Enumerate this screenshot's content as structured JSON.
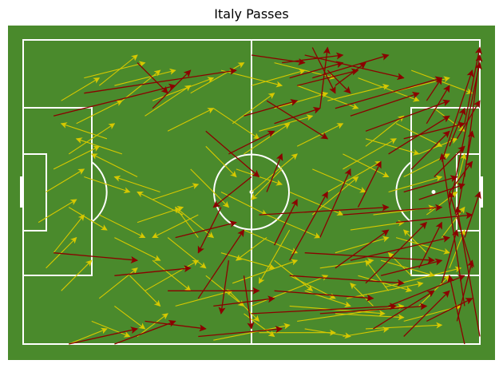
{
  "title": "Italy Passes",
  "colors": {
    "grass": "#4a8a2c",
    "lines": "#ffffff",
    "completed_pass": "#d6c800",
    "failed_pass": "#8b0000"
  },
  "chart_data": {
    "type": "scatter",
    "subtype": "pass-map",
    "pitch": {
      "length": 120,
      "width": 80,
      "grid": false
    },
    "legend": "none",
    "series": [
      {
        "status": "completed",
        "color": "#d6c800",
        "passes": [
          [
            12,
            80,
            22,
            76
          ],
          [
            30,
            78,
            38,
            72
          ],
          [
            50,
            79,
            70,
            75
          ],
          [
            62,
            77,
            82,
            77
          ],
          [
            70,
            70,
            95,
            72
          ],
          [
            72,
            74,
            100,
            70
          ],
          [
            82,
            72,
            100,
            73
          ],
          [
            90,
            76,
            110,
            75
          ],
          [
            100,
            74,
            115,
            70
          ],
          [
            104,
            70,
            112,
            62
          ],
          [
            95,
            65,
            115,
            60
          ],
          [
            85,
            68,
            105,
            64
          ],
          [
            60,
            70,
            80,
            62
          ],
          [
            55,
            64,
            72,
            58
          ],
          [
            48,
            62,
            58,
            70
          ],
          [
            40,
            70,
            55,
            66
          ],
          [
            32,
            66,
            46,
            58
          ],
          [
            20,
            68,
            30,
            60
          ],
          [
            10,
            66,
            18,
            58
          ],
          [
            6,
            60,
            14,
            52
          ],
          [
            8,
            56,
            16,
            46
          ],
          [
            4,
            48,
            14,
            42
          ],
          [
            6,
            40,
            16,
            34
          ],
          [
            8,
            34,
            20,
            28
          ],
          [
            12,
            30,
            24,
            22
          ],
          [
            14,
            22,
            26,
            16
          ],
          [
            10,
            16,
            20,
            10
          ],
          [
            16,
            10,
            32,
            6
          ],
          [
            24,
            12,
            40,
            8
          ],
          [
            34,
            16,
            50,
            10
          ],
          [
            44,
            14,
            58,
            6
          ],
          [
            52,
            8,
            68,
            12
          ],
          [
            60,
            12,
            74,
            8
          ],
          [
            66,
            6,
            82,
            10
          ],
          [
            72,
            12,
            88,
            18
          ],
          [
            80,
            16,
            96,
            12
          ],
          [
            88,
            10,
            104,
            16
          ],
          [
            96,
            14,
            112,
            10
          ],
          [
            102,
            8,
            118,
            14
          ],
          [
            108,
            18,
            116,
            24
          ],
          [
            98,
            22,
            110,
            28
          ],
          [
            90,
            26,
            104,
            30
          ],
          [
            84,
            30,
            96,
            36
          ],
          [
            76,
            34,
            90,
            40
          ],
          [
            70,
            40,
            84,
            46
          ],
          [
            64,
            46,
            78,
            52
          ],
          [
            58,
            50,
            72,
            56
          ],
          [
            52,
            56,
            66,
            60
          ],
          [
            46,
            52,
            40,
            44
          ],
          [
            42,
            46,
            30,
            40
          ],
          [
            36,
            40,
            24,
            36
          ],
          [
            30,
            36,
            18,
            30
          ],
          [
            26,
            30,
            14,
            26
          ],
          [
            22,
            26,
            10,
            22
          ],
          [
            60,
            40,
            72,
            30
          ],
          [
            58,
            30,
            70,
            22
          ],
          [
            55,
            22,
            66,
            14
          ],
          [
            50,
            18,
            62,
            26
          ],
          [
            48,
            28,
            56,
            36
          ],
          [
            44,
            34,
            54,
            44
          ],
          [
            40,
            44,
            50,
            52
          ],
          [
            38,
            52,
            48,
            60
          ],
          [
            34,
            58,
            44,
            66
          ],
          [
            28,
            62,
            36,
            70
          ],
          [
            24,
            70,
            32,
            76
          ],
          [
            18,
            74,
            28,
            78
          ],
          [
            66,
            58,
            76,
            66
          ],
          [
            70,
            62,
            82,
            68
          ],
          [
            74,
            66,
            86,
            70
          ],
          [
            78,
            60,
            92,
            58
          ],
          [
            82,
            56,
            96,
            52
          ],
          [
            86,
            50,
            100,
            48
          ],
          [
            92,
            46,
            108,
            44
          ],
          [
            96,
            40,
            110,
            36
          ],
          [
            100,
            36,
            112,
            30
          ],
          [
            104,
            30,
            114,
            26
          ],
          [
            98,
            52,
            112,
            56
          ],
          [
            94,
            58,
            108,
            62
          ],
          [
            88,
            62,
            102,
            66
          ],
          [
            62,
            24,
            76,
            20
          ],
          [
            66,
            18,
            80,
            14
          ],
          [
            56,
            34,
            68,
            38
          ],
          [
            52,
            40,
            64,
            46
          ],
          [
            46,
            46,
            34,
            52
          ],
          [
            38,
            24,
            50,
            18
          ],
          [
            32,
            20,
            44,
            12
          ],
          [
            26,
            16,
            36,
            8
          ],
          [
            20,
            12,
            30,
            4
          ],
          [
            106,
            46,
            114,
            40
          ],
          [
            110,
            52,
            116,
            44
          ],
          [
            112,
            60,
            116,
            50
          ],
          [
            114,
            38,
            116,
            30
          ],
          [
            76,
            46,
            88,
            36
          ],
          [
            80,
            40,
            94,
            32
          ],
          [
            84,
            34,
            98,
            26
          ],
          [
            90,
            28,
            100,
            20
          ],
          [
            72,
            28,
            84,
            22
          ],
          [
            68,
            34,
            60,
            42
          ],
          [
            64,
            52,
            56,
            58
          ],
          [
            70,
            50,
            62,
            64
          ],
          [
            12,
            44,
            22,
            50
          ],
          [
            16,
            36,
            28,
            40
          ],
          [
            20,
            46,
            32,
            52
          ],
          [
            24,
            52,
            36,
            58
          ],
          [
            30,
            48,
            42,
            44
          ],
          [
            34,
            42,
            46,
            38
          ],
          [
            54,
            66,
            62,
            74
          ],
          [
            58,
            72,
            66,
            78
          ],
          [
            74,
            76,
            86,
            78
          ],
          [
            84,
            78,
            96,
            76
          ],
          [
            92,
            70,
            86,
            64
          ],
          [
            96,
            66,
            90,
            58
          ],
          [
            102,
            62,
            96,
            56
          ],
          [
            106,
            56,
            100,
            50
          ]
        ]
      },
      {
        "status": "failed",
        "color": "#8b0000",
        "passes": [
          [
            12,
            80,
            30,
            76
          ],
          [
            24,
            80,
            40,
            74
          ],
          [
            32,
            74,
            48,
            76
          ],
          [
            46,
            78,
            68,
            76
          ],
          [
            50,
            70,
            66,
            68
          ],
          [
            38,
            66,
            62,
            66
          ],
          [
            8,
            56,
            30,
            58
          ],
          [
            24,
            62,
            44,
            60
          ],
          [
            60,
            72,
            98,
            70
          ],
          [
            66,
            66,
            92,
            68
          ],
          [
            78,
            72,
            106,
            70
          ],
          [
            92,
            76,
            108,
            66
          ],
          [
            100,
            78,
            112,
            66
          ],
          [
            106,
            74,
            118,
            68
          ],
          [
            96,
            70,
            116,
            62
          ],
          [
            70,
            62,
            100,
            64
          ],
          [
            74,
            56,
            108,
            58
          ],
          [
            82,
            60,
            96,
            50
          ],
          [
            86,
            58,
            112,
            52
          ],
          [
            90,
            64,
            106,
            48
          ],
          [
            94,
            62,
            110,
            58
          ],
          [
            104,
            60,
            110,
            48
          ],
          [
            110,
            64,
            114,
            50
          ],
          [
            98,
            48,
            118,
            46
          ],
          [
            84,
            46,
            110,
            44
          ],
          [
            62,
            46,
            96,
            44
          ],
          [
            70,
            58,
            80,
            40
          ],
          [
            78,
            52,
            86,
            34
          ],
          [
            88,
            44,
            94,
            32
          ],
          [
            100,
            40,
            114,
            36
          ],
          [
            104,
            42,
            116,
            38
          ],
          [
            108,
            36,
            116,
            28
          ],
          [
            112,
            40,
            118,
            32
          ],
          [
            102,
            34,
            112,
            24
          ],
          [
            96,
            30,
            112,
            20
          ],
          [
            90,
            24,
            112,
            16
          ],
          [
            86,
            20,
            104,
            14
          ],
          [
            82,
            18,
            110,
            10
          ],
          [
            72,
            12,
            88,
            8
          ],
          [
            76,
            10,
            96,
            4
          ],
          [
            68,
            6,
            84,
            4
          ],
          [
            74,
            4,
            100,
            10
          ],
          [
            80,
            8,
            86,
            14
          ],
          [
            64,
            16,
            80,
            26
          ],
          [
            54,
            30,
            66,
            24
          ],
          [
            48,
            24,
            62,
            36
          ],
          [
            60,
            36,
            50,
            44
          ],
          [
            52,
            44,
            46,
            56
          ],
          [
            54,
            58,
            52,
            72
          ],
          [
            46,
            68,
            58,
            50
          ],
          [
            40,
            52,
            56,
            48
          ],
          [
            58,
            62,
            60,
            76
          ],
          [
            66,
            54,
            72,
            42
          ],
          [
            64,
            40,
            68,
            30
          ],
          [
            100,
            26,
            116,
            22
          ],
          [
            106,
            22,
            112,
            12
          ],
          [
            112,
            28,
            116,
            18
          ],
          [
            114,
            46,
            118,
            24
          ],
          [
            116,
            52,
            120,
            40
          ],
          [
            118,
            60,
            112,
            40
          ],
          [
            116,
            70,
            110,
            30
          ],
          [
            114,
            74,
            118,
            58
          ],
          [
            116,
            80,
            112,
            62
          ],
          [
            120,
            78,
            114,
            44
          ],
          [
            112,
            44,
            120,
            6
          ],
          [
            116,
            36,
            120,
            4
          ],
          [
            110,
            32,
            118,
            8
          ],
          [
            114,
            26,
            120,
            16
          ],
          [
            116,
            22,
            120,
            2
          ],
          [
            106,
            16,
            110,
            10
          ],
          [
            8,
            20,
            40,
            12
          ],
          [
            16,
            14,
            56,
            8
          ],
          [
            34,
            18,
            44,
            8
          ],
          [
            30,
            6,
            38,
            14
          ],
          [
            66,
            22,
            78,
            18
          ],
          [
            58,
            20,
            72,
            16
          ],
          [
            60,
            4,
            74,
            6
          ],
          [
            70,
            10,
            84,
            6
          ],
          [
            76,
            2,
            82,
            14
          ],
          [
            78,
            18,
            80,
            2
          ],
          [
            82,
            12,
            90,
            6
          ]
        ]
      }
    ]
  }
}
